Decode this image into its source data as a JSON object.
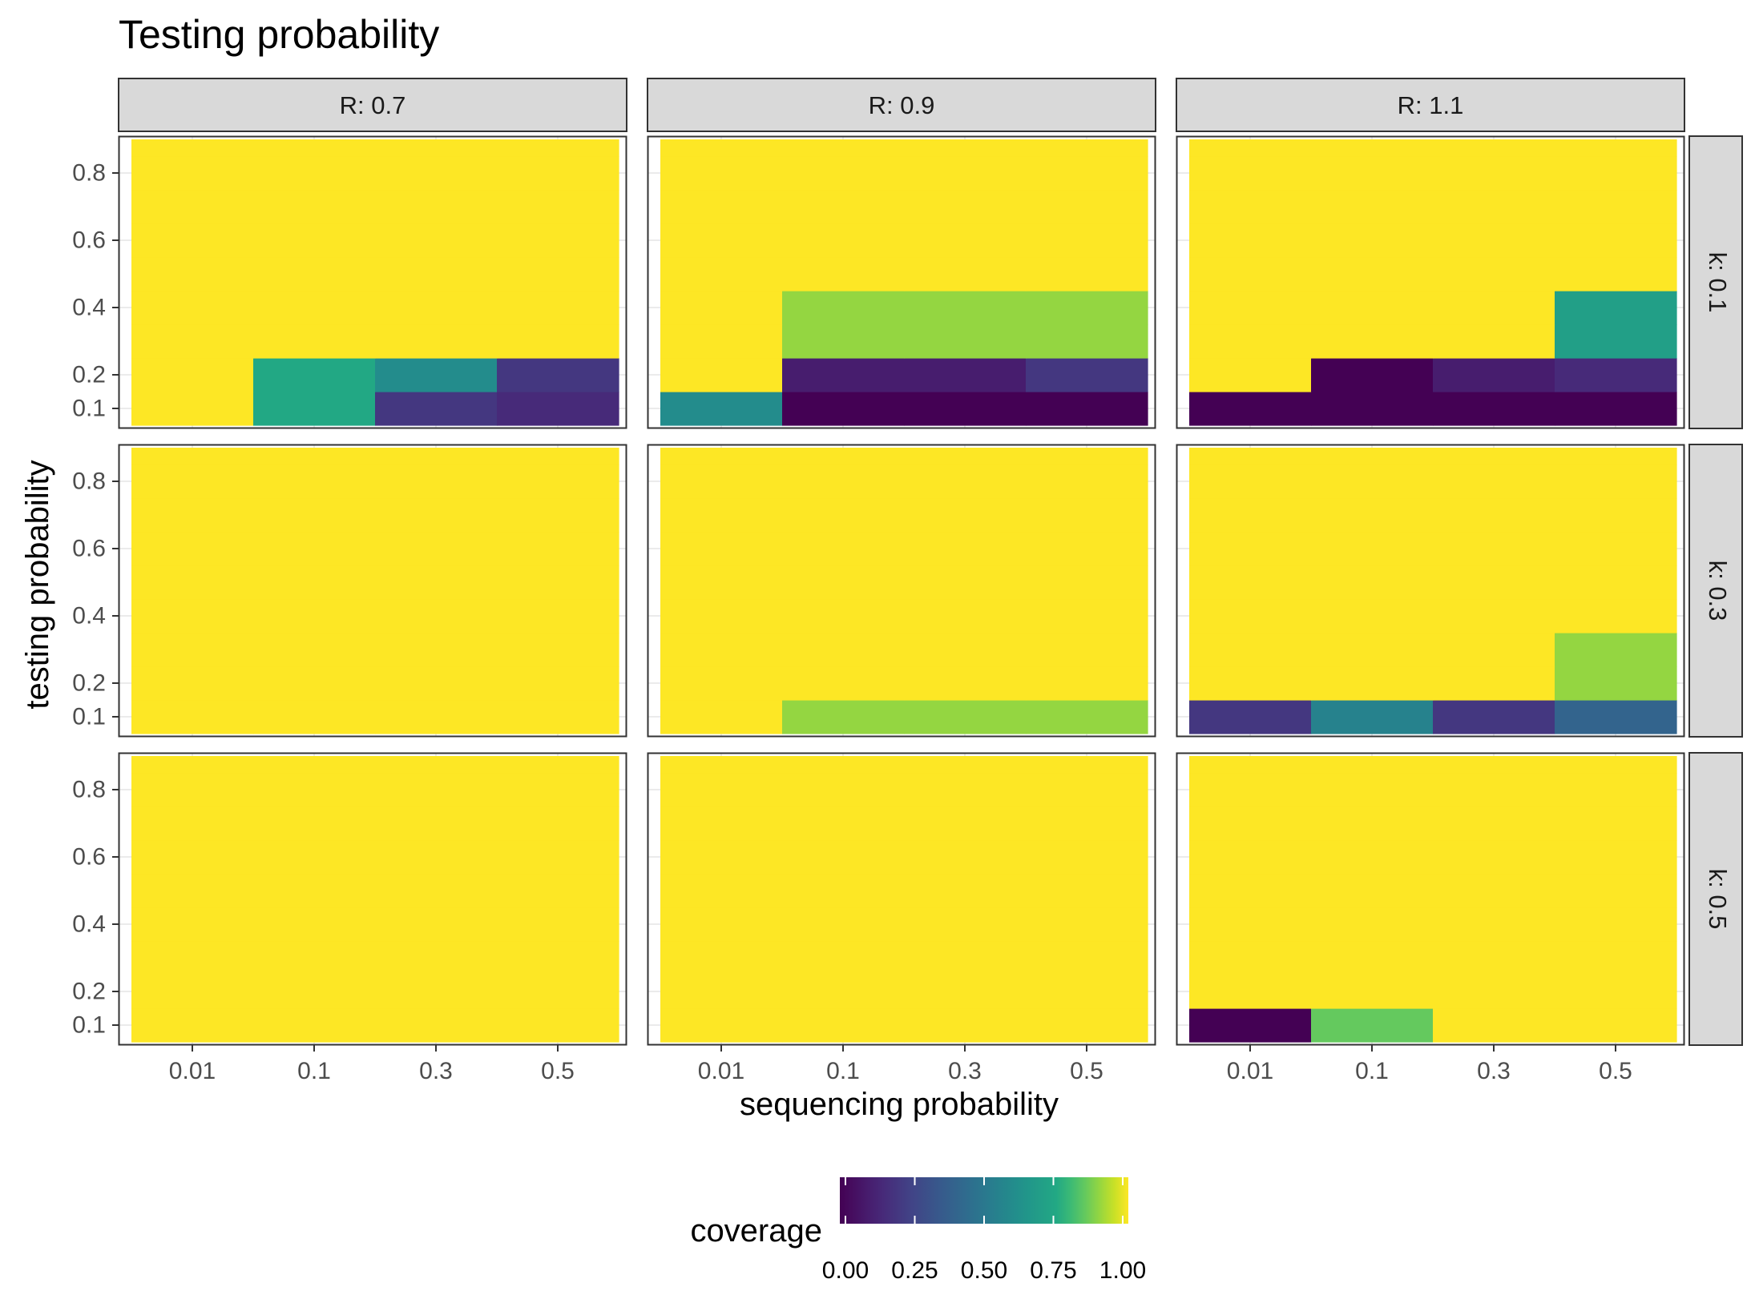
{
  "chart_data": {
    "type": "heatmap",
    "title": "Testing probability",
    "xlabel": "sequencing probability",
    "ylabel": "testing probability",
    "x_categories": [
      "0.01",
      "0.1",
      "0.3",
      "0.5"
    ],
    "y_tick_labels": [
      "0.1",
      "0.2",
      "0.4",
      "0.6",
      "0.8"
    ],
    "y_values": [
      0.1,
      0.2,
      0.3,
      0.4,
      0.5,
      0.6,
      0.7,
      0.8,
      0.9
    ],
    "column_facets": [
      "R: 0.7",
      "R: 0.9",
      "R: 1.1"
    ],
    "row_facets": [
      "k: 0.1",
      "k: 0.3",
      "k: 0.5"
    ],
    "panels": [
      {
        "R": "R: 0.7",
        "k": "k: 0.1",
        "low_rows": [
          [
            1.0,
            0.75,
            0.2,
            0.15
          ],
          [
            1.0,
            0.75,
            0.6,
            0.2
          ]
        ]
      },
      {
        "R": "R: 0.9",
        "k": "k: 0.1",
        "low_rows": [
          [
            0.6,
            0.0,
            0.0,
            0.0
          ],
          [
            1.0,
            0.1,
            0.1,
            0.2
          ],
          [
            1.0,
            0.9,
            0.9,
            0.9
          ],
          [
            1.0,
            0.9,
            0.9,
            0.9
          ]
        ]
      },
      {
        "R": "R: 1.1",
        "k": "k: 0.1",
        "low_rows": [
          [
            0.0,
            0.0,
            0.0,
            0.0
          ],
          [
            1.0,
            0.0,
            0.1,
            0.15
          ],
          [
            1.0,
            1.0,
            1.0,
            0.7
          ],
          [
            1.0,
            1.0,
            1.0,
            0.7
          ]
        ]
      },
      {
        "R": "R: 0.7",
        "k": "k: 0.3",
        "low_rows": []
      },
      {
        "R": "R: 0.9",
        "k": "k: 0.3",
        "low_rows": [
          [
            1.0,
            0.9,
            0.9,
            0.9
          ]
        ]
      },
      {
        "R": "R: 1.1",
        "k": "k: 0.3",
        "low_rows": [
          [
            0.2,
            0.55,
            0.2,
            0.4
          ],
          [
            1.0,
            1.0,
            1.0,
            0.9
          ],
          [
            1.0,
            1.0,
            1.0,
            0.9
          ]
        ]
      },
      {
        "R": "R: 0.7",
        "k": "k: 0.5",
        "low_rows": []
      },
      {
        "R": "R: 0.9",
        "k": "k: 0.5",
        "low_rows": []
      },
      {
        "R": "R: 1.1",
        "k": "k: 0.5",
        "low_rows": [
          [
            0.0,
            0.85,
            1.0,
            1.0
          ]
        ]
      }
    ],
    "default_value": 1.0,
    "legend": {
      "title": "coverage",
      "position": "bottom",
      "range": [
        0,
        1
      ],
      "tick_values": [
        0.0,
        0.25,
        0.5,
        0.75,
        1.0
      ],
      "tick_labels": [
        "0.00",
        "0.25",
        "0.50",
        "0.75",
        "1.00"
      ],
      "colormap": "viridis"
    },
    "grid": true
  }
}
